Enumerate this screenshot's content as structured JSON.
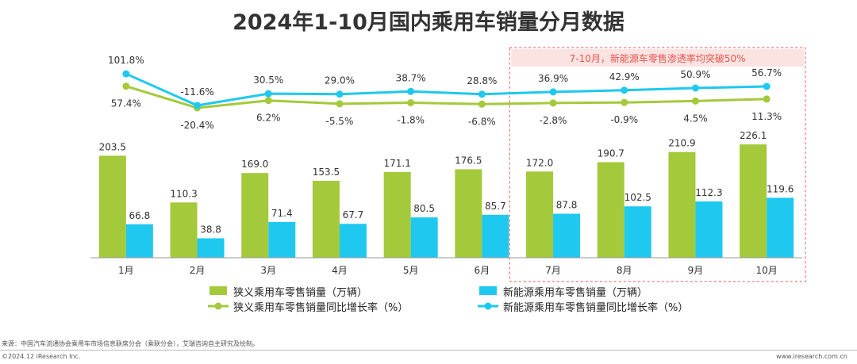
{
  "title": "2024年1-10月国内乘用车销量分月数据",
  "chart_data": {
    "type": "bar",
    "categories": [
      "1月",
      "2月",
      "3月",
      "4月",
      "5月",
      "6月",
      "7月",
      "8月",
      "9月",
      "10月"
    ],
    "series": [
      {
        "name": "狭义乘用车零售销量（万辆）",
        "kind": "bar",
        "color": "#a4c93a",
        "values": [
          203.5,
          110.3,
          169.0,
          153.5,
          171.1,
          176.5,
          172.0,
          190.7,
          210.9,
          226.1
        ],
        "labels": [
          "203.5",
          "110.3",
          "169.0",
          "153.5",
          "171.1",
          "176.5",
          "172.0",
          "190.7",
          "210.9",
          "226.1"
        ]
      },
      {
        "name": "新能源乘用车零售销量（万辆）",
        "kind": "bar",
        "color": "#1ec8ef",
        "values": [
          66.8,
          38.8,
          71.4,
          67.7,
          80.5,
          85.7,
          87.8,
          102.5,
          112.3,
          119.6
        ],
        "labels": [
          "66.8",
          "38.8",
          "71.4",
          "67.7",
          "80.5",
          "85.7",
          "87.8",
          "102.5",
          "112.3",
          "119.6"
        ]
      },
      {
        "name": "狭义乘用车零售销量同比增长率（%）",
        "kind": "line",
        "color": "#a4c93a",
        "values": [
          57.4,
          -20.4,
          6.2,
          -5.5,
          -1.8,
          -6.8,
          -2.8,
          -0.9,
          4.5,
          11.3
        ],
        "labels": [
          "57.4%",
          "-20.4%",
          "6.2%",
          "-5.5%",
          "-1.8%",
          "-6.8%",
          "-2.8%",
          "-0.9%",
          "4.5%",
          "11.3%"
        ]
      },
      {
        "name": "新能源乘用车零售销量同比增长率（%）",
        "kind": "line",
        "color": "#1ec8ef",
        "values": [
          101.8,
          -11.6,
          30.5,
          29.0,
          38.7,
          28.8,
          36.9,
          42.9,
          50.9,
          56.7
        ],
        "labels": [
          "101.8%",
          "-11.6%",
          "30.5%",
          "29.0%",
          "38.7%",
          "28.8%",
          "36.9%",
          "42.9%",
          "50.9%",
          "56.7%"
        ]
      }
    ],
    "annotation": "7-10月，新能源车零售渗透率均突破50%",
    "annotation_color": "#e8534a",
    "grid": false,
    "legend_position": "bottom"
  },
  "footer": {
    "source": "来源：中国汽车流通协会乘用车市场信息联席分会（乘联分会），艾瑞咨询自主研究及绘制。",
    "copyright": "©2024.12 iResearch Inc.",
    "website": "www.iresearch.com.cn"
  }
}
